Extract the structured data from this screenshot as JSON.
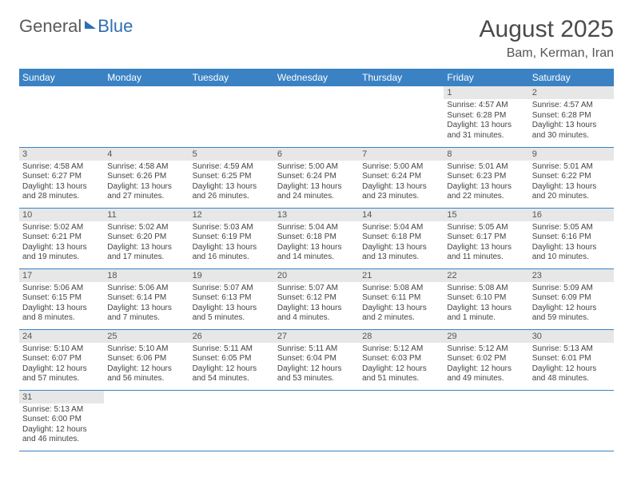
{
  "logo": {
    "text1": "General",
    "text2": "Blue"
  },
  "title": {
    "month": "August 2025",
    "location": "Bam, Kerman, Iran"
  },
  "colors": {
    "header_bg": "#3a82c4",
    "header_fg": "#ffffff",
    "daynum_bg": "#e7e7e7",
    "row_border": "#3a82c4",
    "text": "#444444",
    "logo_blue": "#2e6fb3",
    "logo_gray": "#5a5a5a"
  },
  "weekdays": [
    "Sunday",
    "Monday",
    "Tuesday",
    "Wednesday",
    "Thursday",
    "Friday",
    "Saturday"
  ],
  "weeks": [
    [
      {
        "num": "",
        "lines": []
      },
      {
        "num": "",
        "lines": []
      },
      {
        "num": "",
        "lines": []
      },
      {
        "num": "",
        "lines": []
      },
      {
        "num": "",
        "lines": []
      },
      {
        "num": "1",
        "lines": [
          "Sunrise: 4:57 AM",
          "Sunset: 6:28 PM",
          "Daylight: 13 hours",
          "and 31 minutes."
        ]
      },
      {
        "num": "2",
        "lines": [
          "Sunrise: 4:57 AM",
          "Sunset: 6:28 PM",
          "Daylight: 13 hours",
          "and 30 minutes."
        ]
      }
    ],
    [
      {
        "num": "3",
        "lines": [
          "Sunrise: 4:58 AM",
          "Sunset: 6:27 PM",
          "Daylight: 13 hours",
          "and 28 minutes."
        ]
      },
      {
        "num": "4",
        "lines": [
          "Sunrise: 4:58 AM",
          "Sunset: 6:26 PM",
          "Daylight: 13 hours",
          "and 27 minutes."
        ]
      },
      {
        "num": "5",
        "lines": [
          "Sunrise: 4:59 AM",
          "Sunset: 6:25 PM",
          "Daylight: 13 hours",
          "and 26 minutes."
        ]
      },
      {
        "num": "6",
        "lines": [
          "Sunrise: 5:00 AM",
          "Sunset: 6:24 PM",
          "Daylight: 13 hours",
          "and 24 minutes."
        ]
      },
      {
        "num": "7",
        "lines": [
          "Sunrise: 5:00 AM",
          "Sunset: 6:24 PM",
          "Daylight: 13 hours",
          "and 23 minutes."
        ]
      },
      {
        "num": "8",
        "lines": [
          "Sunrise: 5:01 AM",
          "Sunset: 6:23 PM",
          "Daylight: 13 hours",
          "and 22 minutes."
        ]
      },
      {
        "num": "9",
        "lines": [
          "Sunrise: 5:01 AM",
          "Sunset: 6:22 PM",
          "Daylight: 13 hours",
          "and 20 minutes."
        ]
      }
    ],
    [
      {
        "num": "10",
        "lines": [
          "Sunrise: 5:02 AM",
          "Sunset: 6:21 PM",
          "Daylight: 13 hours",
          "and 19 minutes."
        ]
      },
      {
        "num": "11",
        "lines": [
          "Sunrise: 5:02 AM",
          "Sunset: 6:20 PM",
          "Daylight: 13 hours",
          "and 17 minutes."
        ]
      },
      {
        "num": "12",
        "lines": [
          "Sunrise: 5:03 AM",
          "Sunset: 6:19 PM",
          "Daylight: 13 hours",
          "and 16 minutes."
        ]
      },
      {
        "num": "13",
        "lines": [
          "Sunrise: 5:04 AM",
          "Sunset: 6:18 PM",
          "Daylight: 13 hours",
          "and 14 minutes."
        ]
      },
      {
        "num": "14",
        "lines": [
          "Sunrise: 5:04 AM",
          "Sunset: 6:18 PM",
          "Daylight: 13 hours",
          "and 13 minutes."
        ]
      },
      {
        "num": "15",
        "lines": [
          "Sunrise: 5:05 AM",
          "Sunset: 6:17 PM",
          "Daylight: 13 hours",
          "and 11 minutes."
        ]
      },
      {
        "num": "16",
        "lines": [
          "Sunrise: 5:05 AM",
          "Sunset: 6:16 PM",
          "Daylight: 13 hours",
          "and 10 minutes."
        ]
      }
    ],
    [
      {
        "num": "17",
        "lines": [
          "Sunrise: 5:06 AM",
          "Sunset: 6:15 PM",
          "Daylight: 13 hours",
          "and 8 minutes."
        ]
      },
      {
        "num": "18",
        "lines": [
          "Sunrise: 5:06 AM",
          "Sunset: 6:14 PM",
          "Daylight: 13 hours",
          "and 7 minutes."
        ]
      },
      {
        "num": "19",
        "lines": [
          "Sunrise: 5:07 AM",
          "Sunset: 6:13 PM",
          "Daylight: 13 hours",
          "and 5 minutes."
        ]
      },
      {
        "num": "20",
        "lines": [
          "Sunrise: 5:07 AM",
          "Sunset: 6:12 PM",
          "Daylight: 13 hours",
          "and 4 minutes."
        ]
      },
      {
        "num": "21",
        "lines": [
          "Sunrise: 5:08 AM",
          "Sunset: 6:11 PM",
          "Daylight: 13 hours",
          "and 2 minutes."
        ]
      },
      {
        "num": "22",
        "lines": [
          "Sunrise: 5:08 AM",
          "Sunset: 6:10 PM",
          "Daylight: 13 hours",
          "and 1 minute."
        ]
      },
      {
        "num": "23",
        "lines": [
          "Sunrise: 5:09 AM",
          "Sunset: 6:09 PM",
          "Daylight: 12 hours",
          "and 59 minutes."
        ]
      }
    ],
    [
      {
        "num": "24",
        "lines": [
          "Sunrise: 5:10 AM",
          "Sunset: 6:07 PM",
          "Daylight: 12 hours",
          "and 57 minutes."
        ]
      },
      {
        "num": "25",
        "lines": [
          "Sunrise: 5:10 AM",
          "Sunset: 6:06 PM",
          "Daylight: 12 hours",
          "and 56 minutes."
        ]
      },
      {
        "num": "26",
        "lines": [
          "Sunrise: 5:11 AM",
          "Sunset: 6:05 PM",
          "Daylight: 12 hours",
          "and 54 minutes."
        ]
      },
      {
        "num": "27",
        "lines": [
          "Sunrise: 5:11 AM",
          "Sunset: 6:04 PM",
          "Daylight: 12 hours",
          "and 53 minutes."
        ]
      },
      {
        "num": "28",
        "lines": [
          "Sunrise: 5:12 AM",
          "Sunset: 6:03 PM",
          "Daylight: 12 hours",
          "and 51 minutes."
        ]
      },
      {
        "num": "29",
        "lines": [
          "Sunrise: 5:12 AM",
          "Sunset: 6:02 PM",
          "Daylight: 12 hours",
          "and 49 minutes."
        ]
      },
      {
        "num": "30",
        "lines": [
          "Sunrise: 5:13 AM",
          "Sunset: 6:01 PM",
          "Daylight: 12 hours",
          "and 48 minutes."
        ]
      }
    ],
    [
      {
        "num": "31",
        "lines": [
          "Sunrise: 5:13 AM",
          "Sunset: 6:00 PM",
          "Daylight: 12 hours",
          "and 46 minutes."
        ]
      },
      {
        "num": "",
        "lines": []
      },
      {
        "num": "",
        "lines": []
      },
      {
        "num": "",
        "lines": []
      },
      {
        "num": "",
        "lines": []
      },
      {
        "num": "",
        "lines": []
      },
      {
        "num": "",
        "lines": []
      }
    ]
  ]
}
